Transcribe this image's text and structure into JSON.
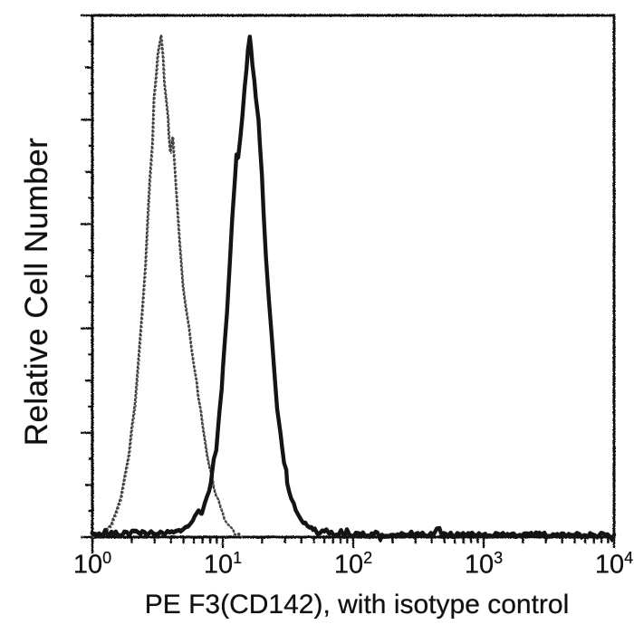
{
  "figure": {
    "background": "#ffffff",
    "ink": "#111111"
  },
  "chart_data": {
    "type": "line",
    "subtype": "flow-cytometry-histogram",
    "title": "",
    "xlabel": "PE F3(CD142), with isotype control",
    "ylabel": "Relative Cell Number",
    "x_scale": "log10",
    "x_range": [
      1,
      10000
    ],
    "y_range_relative_pct": [
      0,
      100
    ],
    "grid": false,
    "legend": "none",
    "x_tick_labels": [
      {
        "base": "10",
        "exp": "0"
      },
      {
        "base": "10",
        "exp": "1"
      },
      {
        "base": "10",
        "exp": "2"
      },
      {
        "base": "10",
        "exp": "3"
      },
      {
        "base": "10",
        "exp": "4"
      }
    ],
    "x_minor_ticks": "log positions 2-9 each decade",
    "y_ticks": {
      "major_divisions": 5,
      "minor_per_major": 4,
      "labeled": false
    },
    "series": [
      {
        "name": "isotype control",
        "line_style": "dotted",
        "color": "#3d3d3d",
        "peak_x": 3.4,
        "peak_height_pct": 96,
        "points": [
          [
            1.0,
            0.4
          ],
          [
            1.12,
            0.6
          ],
          [
            1.22,
            0.9
          ],
          [
            1.3,
            1.4
          ],
          [
            1.4,
            2.6
          ],
          [
            1.5,
            4.2
          ],
          [
            1.6,
            6.5
          ],
          [
            1.7,
            9.2
          ],
          [
            1.8,
            12.5
          ],
          [
            1.9,
            16
          ],
          [
            2.0,
            20.5
          ],
          [
            2.1,
            25.5
          ],
          [
            2.2,
            31
          ],
          [
            2.3,
            37
          ],
          [
            2.42,
            44
          ],
          [
            2.54,
            52
          ],
          [
            2.65,
            60
          ],
          [
            2.76,
            68
          ],
          [
            2.87,
            76
          ],
          [
            2.97,
            84
          ],
          [
            3.07,
            89
          ],
          [
            3.17,
            92.5
          ],
          [
            3.27,
            95
          ],
          [
            3.36,
            96.2
          ],
          [
            3.46,
            92
          ],
          [
            3.56,
            87.5
          ],
          [
            3.66,
            84.5
          ],
          [
            3.76,
            80.5
          ],
          [
            3.86,
            77
          ],
          [
            3.96,
            74
          ],
          [
            4.1,
            76.5
          ],
          [
            4.27,
            71
          ],
          [
            4.45,
            64
          ],
          [
            4.66,
            56.5
          ],
          [
            4.9,
            48
          ],
          [
            5.5,
            40
          ],
          [
            6.0,
            33
          ],
          [
            6.5,
            27
          ],
          [
            7.0,
            21
          ],
          [
            7.6,
            16
          ],
          [
            8.2,
            11.5
          ],
          [
            8.8,
            8.3
          ],
          [
            9.5,
            5.6
          ],
          [
            10.2,
            3.6
          ],
          [
            11.0,
            2.2
          ],
          [
            11.9,
            1.2
          ],
          [
            12.8,
            0.5
          ],
          [
            13.8,
            0.2
          ]
        ]
      },
      {
        "name": "PE F3(CD142)",
        "line_style": "solid",
        "color": "#141414",
        "peak_x": 16,
        "peak_height_pct": 96,
        "points": [
          [
            1.0,
            0.5
          ],
          [
            1.3,
            0.7
          ],
          [
            1.7,
            0.6
          ],
          [
            2.1,
            0.9
          ],
          [
            2.6,
            0.7
          ],
          [
            3.2,
            1.0
          ],
          [
            3.9,
            0.8
          ],
          [
            4.6,
            1.1
          ],
          [
            5.2,
            1.6
          ],
          [
            5.7,
            2.4
          ],
          [
            6.1,
            3.6
          ],
          [
            6.5,
            5.5
          ],
          [
            6.9,
            4.6
          ],
          [
            7.3,
            6.5
          ],
          [
            7.8,
            8.5
          ],
          [
            8.3,
            12
          ],
          [
            8.9,
            17
          ],
          [
            9.5,
            24
          ],
          [
            10.1,
            33
          ],
          [
            10.7,
            43
          ],
          [
            11.2,
            52
          ],
          [
            11.8,
            61
          ],
          [
            12.3,
            68
          ],
          [
            12.8,
            73.5
          ],
          [
            13.2,
            72.5
          ],
          [
            13.7,
            76
          ],
          [
            14.2,
            81
          ],
          [
            14.7,
            86
          ],
          [
            15.1,
            90
          ],
          [
            15.5,
            93.5
          ],
          [
            16.0,
            95.8
          ],
          [
            16.5,
            93.5
          ],
          [
            17.0,
            90.5
          ],
          [
            17.5,
            87.5
          ],
          [
            18.0,
            84.5
          ],
          [
            18.6,
            80
          ],
          [
            19.2,
            75
          ],
          [
            19.9,
            69
          ],
          [
            20.7,
            62
          ],
          [
            21.6,
            54
          ],
          [
            22.6,
            46
          ],
          [
            23.7,
            38.5
          ],
          [
            24.9,
            31.5
          ],
          [
            26.2,
            25
          ],
          [
            27.7,
            19.5
          ],
          [
            29.4,
            14.5
          ],
          [
            31.4,
            10.5
          ],
          [
            33.7,
            7.5
          ],
          [
            36.3,
            5.3
          ],
          [
            39.4,
            3.7
          ],
          [
            43.0,
            2.6
          ],
          [
            47.5,
            1.8
          ],
          [
            53.0,
            1.3
          ],
          [
            60.0,
            0.9
          ],
          [
            80.0,
            0.6
          ],
          [
            110.0,
            0.5
          ],
          [
            180.0,
            0.55
          ],
          [
            300.0,
            0.45
          ],
          [
            600.0,
            0.5
          ],
          [
            1200.0,
            0.45
          ],
          [
            2500.0,
            0.5
          ],
          [
            5000.0,
            0.4
          ],
          [
            10000.0,
            0.45
          ]
        ]
      }
    ]
  }
}
